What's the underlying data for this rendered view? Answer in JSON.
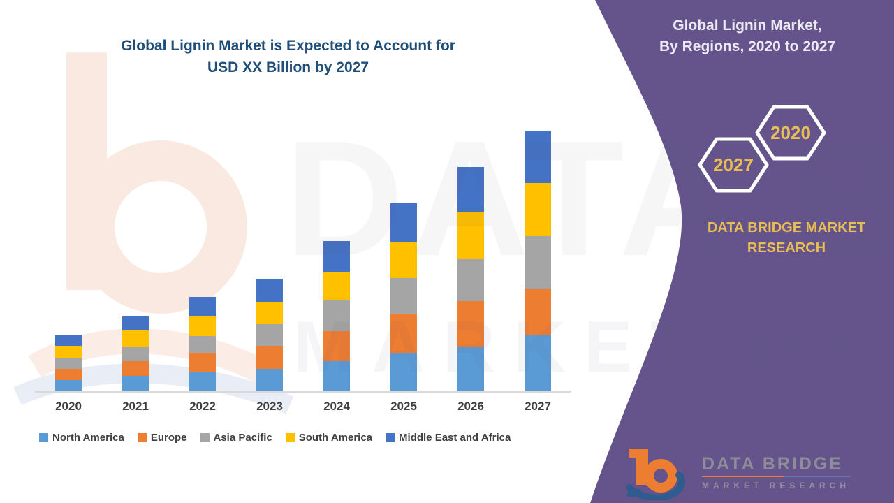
{
  "chart": {
    "title_line1": "Global Lignin Market is Expected to Account for",
    "title_line2": "USD XX Billion by 2027",
    "title_color": "#1F4E79"
  },
  "chart_data": {
    "type": "bar",
    "stacked": true,
    "title": "Global Lignin Market is Expected to Account for USD XX Billion by 2027",
    "xlabel": "",
    "ylabel": "",
    "y_axis_note": "no value axis shown — values are estimated relative units (market sized as USD XX Billion)",
    "grid": false,
    "legend_position": "bottom",
    "categories": [
      "2020",
      "2021",
      "2022",
      "2023",
      "2024",
      "2025",
      "2026",
      "2027"
    ],
    "series": [
      {
        "name": "North America",
        "color": "#5B9BD5",
        "values": [
          2.0,
          2.8,
          3.4,
          4.0,
          5.4,
          6.8,
          8.0,
          10.0
        ]
      },
      {
        "name": "Europe",
        "color": "#ED7D31",
        "values": [
          2.0,
          2.6,
          3.4,
          4.1,
          5.3,
          6.9,
          8.1,
          8.4
        ]
      },
      {
        "name": "Asia Pacific",
        "color": "#A5A5A5",
        "values": [
          2.0,
          2.6,
          3.1,
          3.9,
          5.5,
          6.5,
          7.5,
          9.4
        ]
      },
      {
        "name": "South America",
        "color": "#FFC000",
        "values": [
          2.1,
          2.9,
          3.5,
          4.0,
          5.1,
          6.6,
          8.5,
          9.4
        ]
      },
      {
        "name": "Middle East and Africa",
        "color": "#4472C4",
        "values": [
          1.9,
          2.5,
          3.5,
          4.1,
          5.6,
          6.8,
          8.0,
          9.3
        ]
      }
    ],
    "totals_estimated": [
      10.0,
      13.4,
      16.9,
      20.1,
      26.9,
      33.6,
      40.1,
      46.5
    ]
  },
  "panel": {
    "title_line1": "Global Lignin Market,",
    "title_line2": "By Regions, 2020 to 2027",
    "hexagon_back_year": "2027",
    "hexagon_front_year": "2020",
    "brand_line": "DATA BRIDGE MARKET RESEARCH",
    "background_color": "#64548B",
    "accent_gold": "#E9BD55"
  },
  "watermark": {
    "line1": "DATA BRIDGE",
    "line2": "MARKET RESEARCH"
  },
  "logo": {
    "name": "DATA BRIDGE",
    "subtitle": "MARKET RESEARCH"
  }
}
